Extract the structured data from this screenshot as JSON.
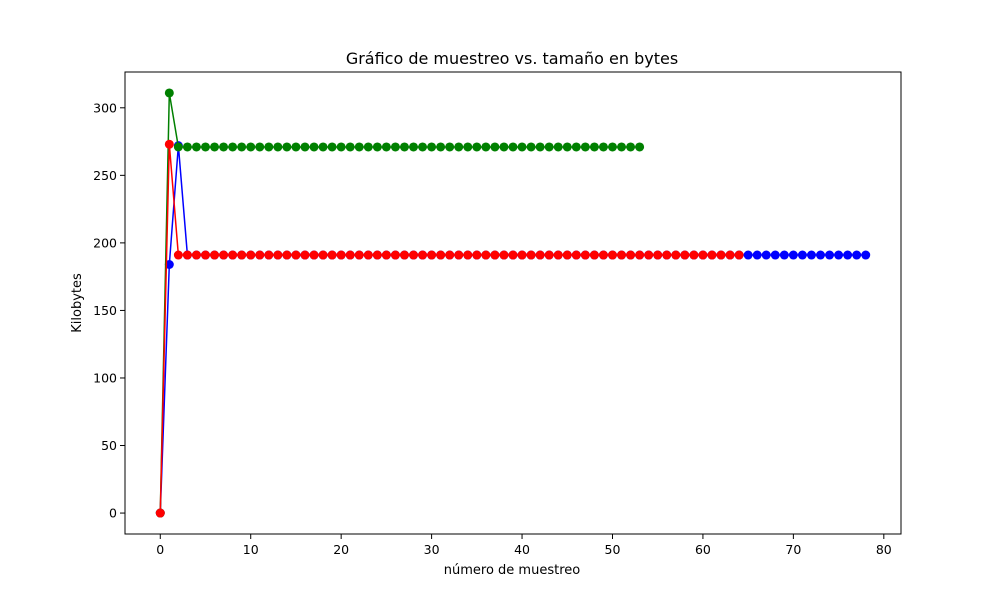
{
  "chart_data": {
    "type": "line",
    "title": "Gráfico de muestreo vs. tamaño en bytes",
    "xlabel": "número de muestreo",
    "ylabel": "Kilobytes",
    "xlim": [
      -3.9,
      81.9
    ],
    "ylim": [
      -15.5,
      326.5
    ],
    "xticks": [
      0,
      10,
      20,
      30,
      40,
      50,
      60,
      70,
      80
    ],
    "yticks": [
      0,
      50,
      100,
      150,
      200,
      250,
      300
    ],
    "grid": false,
    "legend": "none",
    "series": [
      {
        "color": "#0000ff",
        "marker": "circle",
        "first_points": [
          [
            0,
            0
          ],
          [
            1,
            184
          ],
          [
            2,
            272
          ]
        ],
        "steady_from": 3,
        "steady_to": 78,
        "steady_value": 191
      },
      {
        "color": "#008000",
        "marker": "circle",
        "first_points": [
          [
            0,
            0
          ],
          [
            1,
            311
          ]
        ],
        "steady_from": 2,
        "steady_to": 53,
        "steady_value": 271
      },
      {
        "color": "#ff0000",
        "marker": "circle",
        "first_points": [
          [
            0,
            0
          ],
          [
            1,
            273
          ]
        ],
        "steady_from": 2,
        "steady_to": 64,
        "steady_value": 191
      }
    ]
  }
}
